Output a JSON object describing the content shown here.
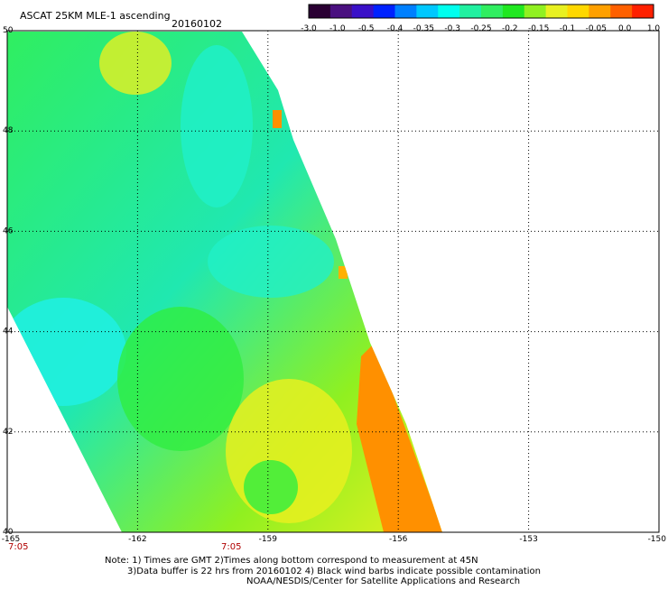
{
  "header": {
    "title": "ASCAT 25KM MLE-1 ascending",
    "date": "20160102"
  },
  "colorbar": {
    "colors": [
      "#2a0033",
      "#4a1080",
      "#3a10c8",
      "#0022ff",
      "#0080ff",
      "#00c8ff",
      "#00ffee",
      "#20f0a0",
      "#30ee60",
      "#20e820",
      "#90f020",
      "#e8f020",
      "#ffd800",
      "#ffa000",
      "#ff6000",
      "#ff2000"
    ],
    "labels": [
      "-3.0",
      "-1.0",
      "-0.5",
      "-0.4",
      "-0.35",
      "-0.3",
      "-0.25",
      "-0.2",
      "-0.15",
      "-0.1",
      "-0.05",
      "0.0",
      "1.0"
    ]
  },
  "axes": {
    "lat_labels": [
      "50",
      "48",
      "46",
      "44",
      "42",
      "40"
    ],
    "lat_values": [
      50,
      48,
      46,
      44,
      42,
      40
    ],
    "lon_labels": [
      "-165",
      "-162",
      "-159",
      "-156",
      "-153",
      "-150"
    ],
    "lon_values": [
      -165,
      -162,
      -159,
      -156,
      -153,
      -150
    ],
    "lon_range": [
      -165,
      -150
    ],
    "lat_range": [
      40,
      50
    ],
    "grid": true
  },
  "times": [
    "7:05",
    "7:05"
  ],
  "notes": [
    "Note: 1) Times are GMT 2)Times along bottom correspond to measurement at 45N",
    "3)Data buffer is 22 hrs from 20160102 4) Black wind barbs indicate possible contamination",
    "NOAA/NESDIS/Center for Satellite Applications and Research"
  ]
}
